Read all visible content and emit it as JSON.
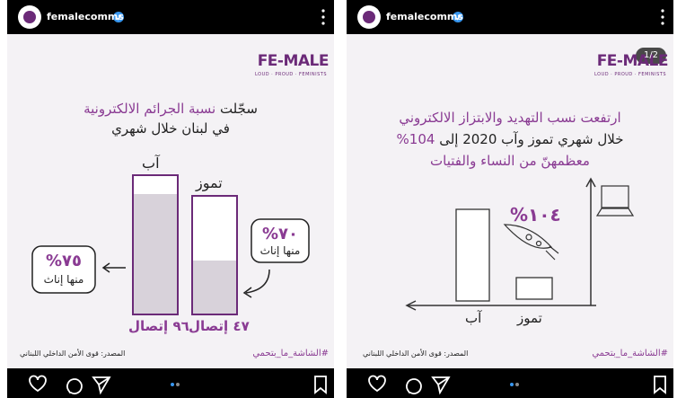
{
  "posts": [
    {
      "account": "femalecomms",
      "logo": {
        "name": "FE-MALE",
        "tagline": "LOUD · PROUD · FEMINISTS"
      },
      "title": {
        "line1_black": "سجّلت",
        "line1_purple": "نسبة الجرائم الالكترونية",
        "line2": "في لبنان خلال شهري"
      },
      "months": [
        "آب",
        "تموز"
      ],
      "counts": [
        "٩٦ إتصال",
        "٤٧ إتصال"
      ],
      "left_note": {
        "percent": "٧٥%",
        "text": "منها إناث"
      },
      "right_note": {
        "percent": "٧٠%",
        "text": "منها إناث"
      },
      "hashtag": "#الشاشة_ما_بتحمي",
      "source": "المصدر: قوى الأمن الداخلي اللبناني"
    },
    {
      "account": "femalecomms",
      "logo": {
        "name": "FE-MALE",
        "tagline": "LOUD · PROUD · FEMINISTS"
      },
      "badge": "1/2",
      "title": {
        "line1": "ارتفعت نسب التهديد والابتزاز الالكتروني",
        "line2_black": "خلال شهري تموز وآب 2020 إلى",
        "line2_purple": "104%",
        "line3": "معظمهنّ من النساء والفتيات"
      },
      "increase": "١٠٤%",
      "months": [
        "آب",
        "تموز"
      ],
      "hashtag": "#الشاشة_ما_بتحمي",
      "source": "المصدر: قوى الأمن الداخلي اللبناني"
    }
  ]
}
